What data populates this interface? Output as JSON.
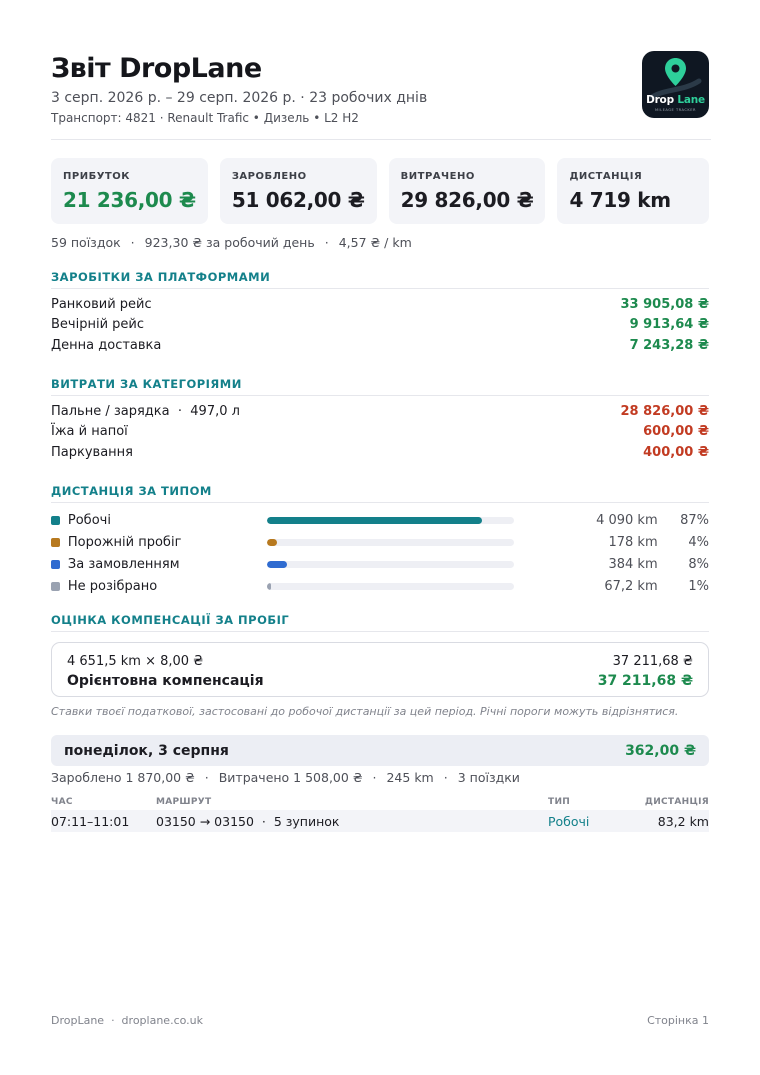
{
  "header": {
    "title": "Звіт DropLane",
    "period": "3 серп. 2026 р. – 29 серп. 2026 р. · 23 робочих днів",
    "vehicle": "Транспорт: 4821 · Renault Trafic • Дизель • L2 H2",
    "logo_text_part1": "Drop",
    "logo_text_part2": "Lane",
    "logo_tagline": "MILEAGE TRACKER"
  },
  "stats": [
    {
      "label": "ПРИБУТОК",
      "value": "21 236,00 ₴"
    },
    {
      "label": "ЗАРОБЛЕНО",
      "value": "51 062,00 ₴"
    },
    {
      "label": "ВИТРАЧЕНО",
      "value": "29 826,00 ₴"
    },
    {
      "label": "ДИСТАНЦІЯ",
      "value": "4 719 km"
    }
  ],
  "meta": {
    "trips": "59 поїздок",
    "per_day": "923,30 ₴ за робочий день",
    "per_km": "4,57 ₴ / km"
  },
  "earnings": {
    "heading": "ЗАРОБІТКИ ЗА ПЛАТФОРМАМИ",
    "items": [
      {
        "label": "Ранковий рейс",
        "amount": "33 905,08 ₴"
      },
      {
        "label": "Вечірній рейс",
        "amount": "9 913,64 ₴"
      },
      {
        "label": "Денна доставка",
        "amount": "7 243,28 ₴"
      }
    ]
  },
  "expenses": {
    "heading": "ВИТРАТИ ЗА КАТЕГОРІЯМИ",
    "items": [
      {
        "label": "Пальне / зарядка  ·  497,0 л",
        "amount": "28 826,00 ₴"
      },
      {
        "label": "Їжа й напої",
        "amount": "600,00 ₴"
      },
      {
        "label": "Паркування",
        "amount": "400,00 ₴"
      }
    ]
  },
  "distance": {
    "heading": "ДИСТАНЦІЯ ЗА ТИПОМ",
    "items": [
      {
        "label": "Робочі",
        "value": "4 090 km",
        "pct": "87%",
        "fraction": 0.87,
        "color": "#13808a"
      },
      {
        "label": "Порожній пробіг",
        "value": "178 km",
        "pct": "4%",
        "fraction": 0.04,
        "color": "#b7791f"
      },
      {
        "label": "За замовленням",
        "value": "384 km",
        "pct": "8%",
        "fraction": 0.08,
        "color": "#2f6bd0"
      },
      {
        "label": "Не розібрано",
        "value": "67,2 km",
        "pct": "1%",
        "fraction": 0.01,
        "color": "#9aa2b1"
      }
    ]
  },
  "compensation": {
    "heading": "ОЦІНКА КОМПЕНСАЦІЇ ЗА ПРОБІГ",
    "calc_label": "4 651,5 km × 8,00 ₴",
    "calc_value": "37 211,68 ₴",
    "total_label": "Орієнтовна компенсація",
    "total_value": "37 211,68 ₴",
    "note": "Ставки твоєї податкової, застосовані до робочої дистанції за цей період. Річні пороги можуть відрізнятися."
  },
  "day": {
    "date": "понеділок, 3 серпня",
    "profit": "362,00 ₴",
    "earned": "Зароблено 1 870,00 ₴",
    "spent": "Витрачено 1 508,00 ₴",
    "distance": "245 km",
    "trips": "3 поїздки",
    "columns": {
      "time": "ЧАС",
      "route": "МАРШРУТ",
      "type": "ТИП",
      "distance": "ДИСТАНЦІЯ"
    },
    "rows": [
      {
        "time": "07:11–11:01",
        "route": "03150 → 03150  ·  5 зупинок",
        "type": "Робочі",
        "distance": "83,2 km"
      }
    ]
  },
  "footer": {
    "left": "DropLane  ·  droplane.co.uk",
    "right": "Сторінка 1"
  },
  "colors": {
    "accent": "#13808a",
    "positive": "#1d8a4e",
    "negative": "#c23b22"
  }
}
